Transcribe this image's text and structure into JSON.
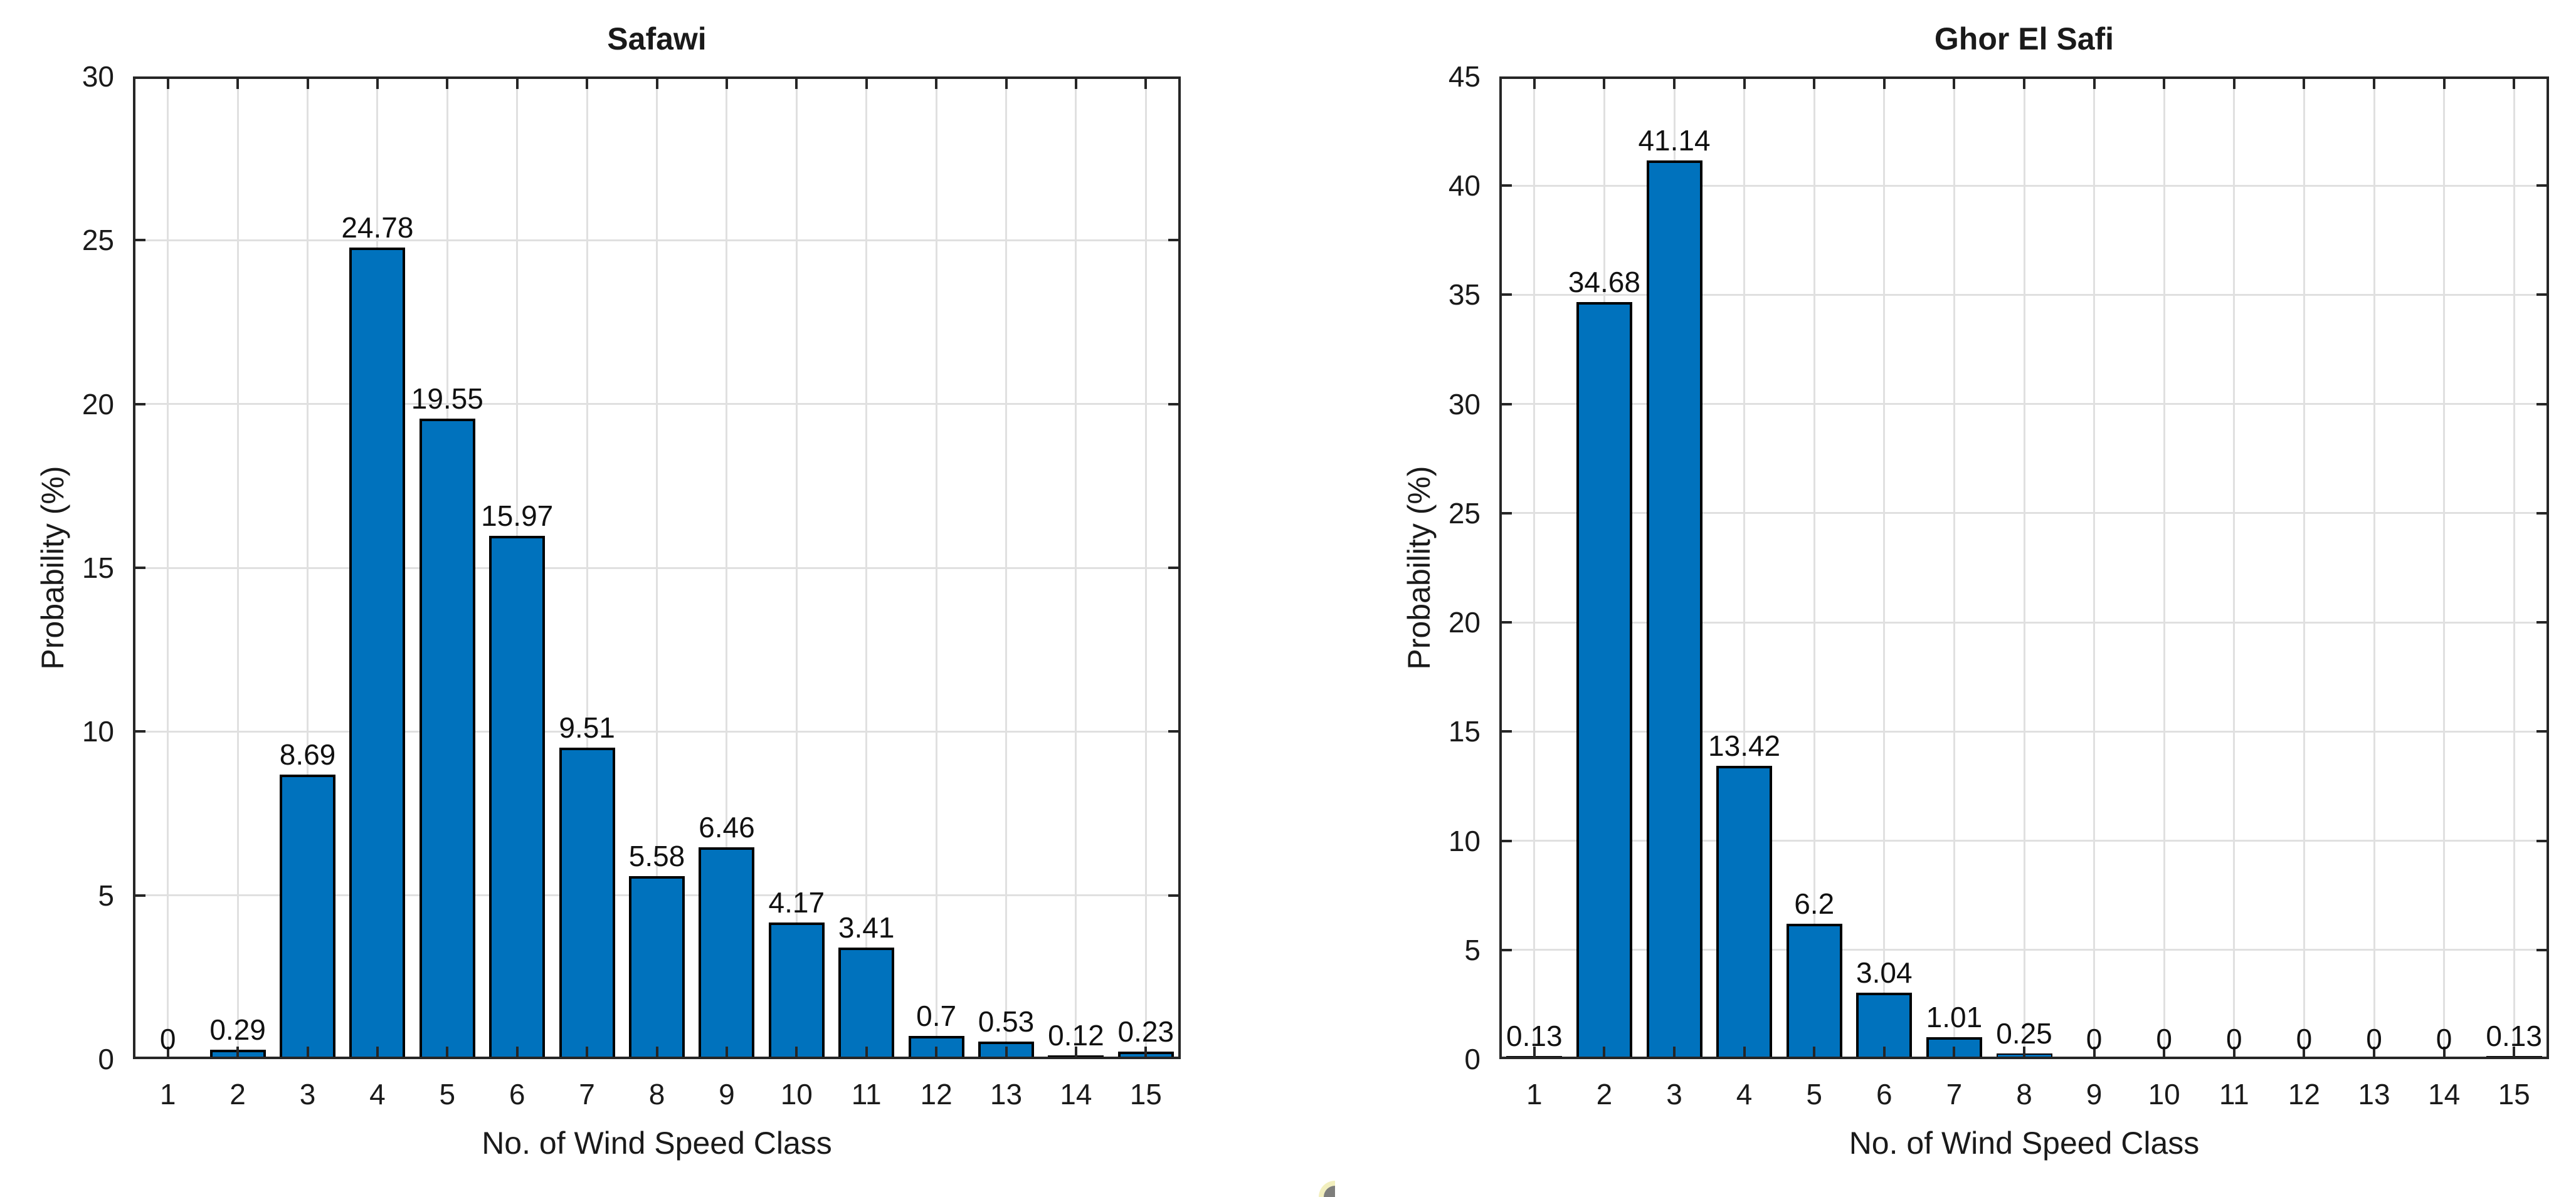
{
  "figure": {
    "background": "#ffffff",
    "stray_mark": {
      "outer_color": "#f2efbe",
      "inner_color": "#7e7e7c"
    }
  },
  "chart_data": [
    {
      "type": "bar",
      "title": "Safawi",
      "xlabel": "No. of Wind Speed Class",
      "ylabel": "Probability (%)",
      "categories": [
        1,
        2,
        3,
        4,
        5,
        6,
        7,
        8,
        9,
        10,
        11,
        12,
        13,
        14,
        15
      ],
      "x_tick_labels": [
        "1",
        "2",
        "3",
        "4",
        "5",
        "6",
        "7",
        "8",
        "9",
        "10",
        "11",
        "12",
        "13",
        "14",
        "15"
      ],
      "values": [
        0,
        0.29,
        8.69,
        24.78,
        19.55,
        15.97,
        9.51,
        5.58,
        6.46,
        4.17,
        3.41,
        0.7,
        0.53,
        0.12,
        0.23
      ],
      "bar_labels": [
        "0",
        "0.29",
        "8.69",
        "24.78",
        "19.55",
        "15.97",
        "9.51",
        "5.58",
        "6.46",
        "4.17",
        "3.41",
        "0.7",
        "0.53",
        "0.12",
        "0.23"
      ],
      "ylim": [
        0,
        30
      ],
      "yticks": [
        0,
        5,
        10,
        15,
        20,
        25,
        30
      ],
      "ytick_labels": [
        "0",
        "5",
        "10",
        "15",
        "20",
        "25",
        "30"
      ],
      "grid": true,
      "legend": null,
      "bar_fill_color": "#0072BD",
      "bar_edge_color": "#000000",
      "grid_color": "#e0e0e0",
      "axis_color": "#262626",
      "text_color": "#1a1a1a"
    },
    {
      "type": "bar",
      "title": "Ghor El Safi",
      "xlabel": "No. of Wind Speed Class",
      "ylabel": "Probability (%)",
      "categories": [
        1,
        2,
        3,
        4,
        5,
        6,
        7,
        8,
        9,
        10,
        11,
        12,
        13,
        14,
        15
      ],
      "x_tick_labels": [
        "1",
        "2",
        "3",
        "4",
        "5",
        "6",
        "7",
        "8",
        "9",
        "10",
        "11",
        "12",
        "13",
        "14",
        "15"
      ],
      "values": [
        0.13,
        34.68,
        41.14,
        13.42,
        6.2,
        3.04,
        1.01,
        0.25,
        0,
        0,
        0,
        0,
        0,
        0,
        0.13
      ],
      "bar_labels": [
        "0.13",
        "34.68",
        "41.14",
        "13.42",
        "6.2",
        "3.04",
        "1.01",
        "0.25",
        "0",
        "0",
        "0",
        "0",
        "0",
        "0",
        "0.13"
      ],
      "ylim": [
        0,
        45
      ],
      "yticks": [
        0,
        5,
        10,
        15,
        20,
        25,
        30,
        35,
        40,
        45
      ],
      "ytick_labels": [
        "0",
        "5",
        "10",
        "15",
        "20",
        "25",
        "30",
        "35",
        "40",
        "45"
      ],
      "grid": true,
      "legend": null,
      "bar_fill_color": "#0072BD",
      "bar_edge_color": "#000000",
      "grid_color": "#e0e0e0",
      "axis_color": "#262626",
      "text_color": "#1a1a1a"
    }
  ]
}
